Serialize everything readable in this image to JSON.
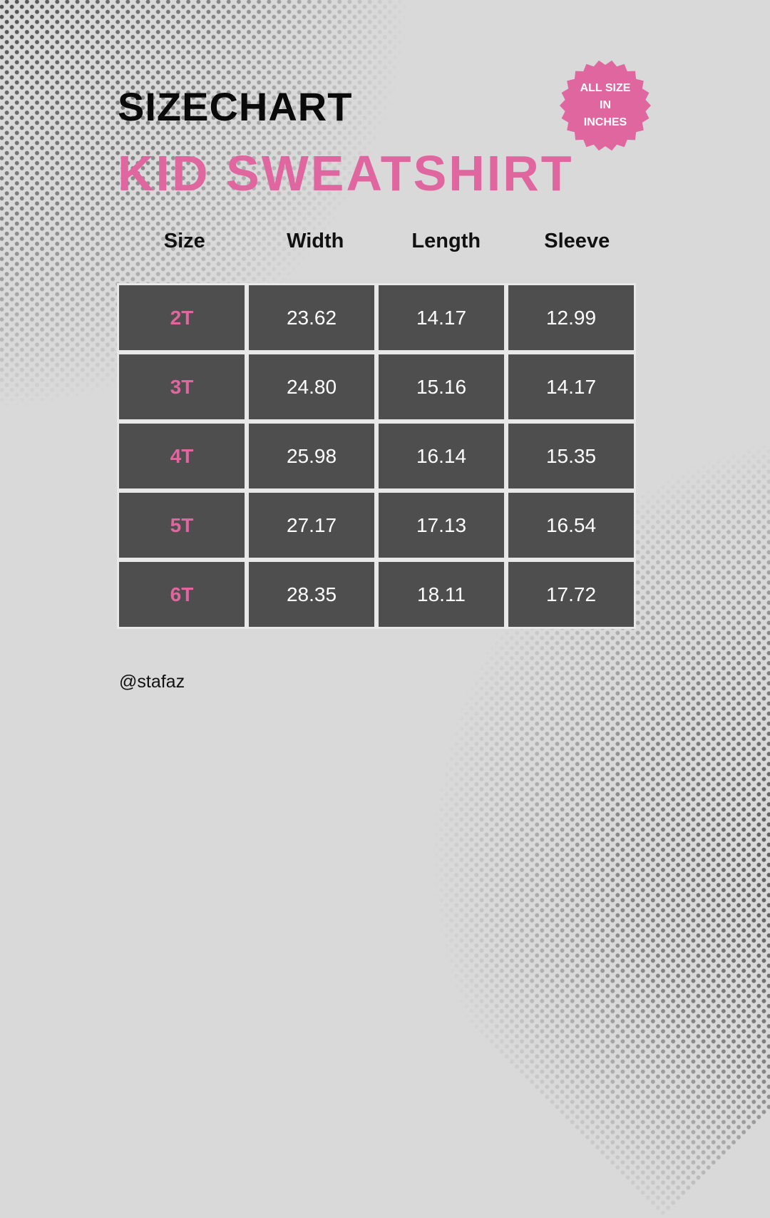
{
  "title": "SIZECHART",
  "subtitle": "KID SWEATSHIRT",
  "badge": {
    "line1": "ALL SIZE",
    "line2": "IN",
    "line3": "INCHES",
    "color": "#e066a0"
  },
  "colors": {
    "background": "#d9d9d9",
    "cell": "#4f4e4e",
    "accent": "#e066a0"
  },
  "table": {
    "headers": [
      "Size",
      "Width",
      "Length",
      "Sleeve"
    ],
    "rows": [
      [
        "2T",
        "23.62",
        "14.17",
        "12.99"
      ],
      [
        "3T",
        "24.80",
        "15.16",
        "14.17"
      ],
      [
        "4T",
        "25.98",
        "16.14",
        "15.35"
      ],
      [
        "5T",
        "27.17",
        "17.13",
        "16.54"
      ],
      [
        "6T",
        "28.35",
        "18.11",
        "17.72"
      ]
    ]
  },
  "handle": "@stafaz"
}
